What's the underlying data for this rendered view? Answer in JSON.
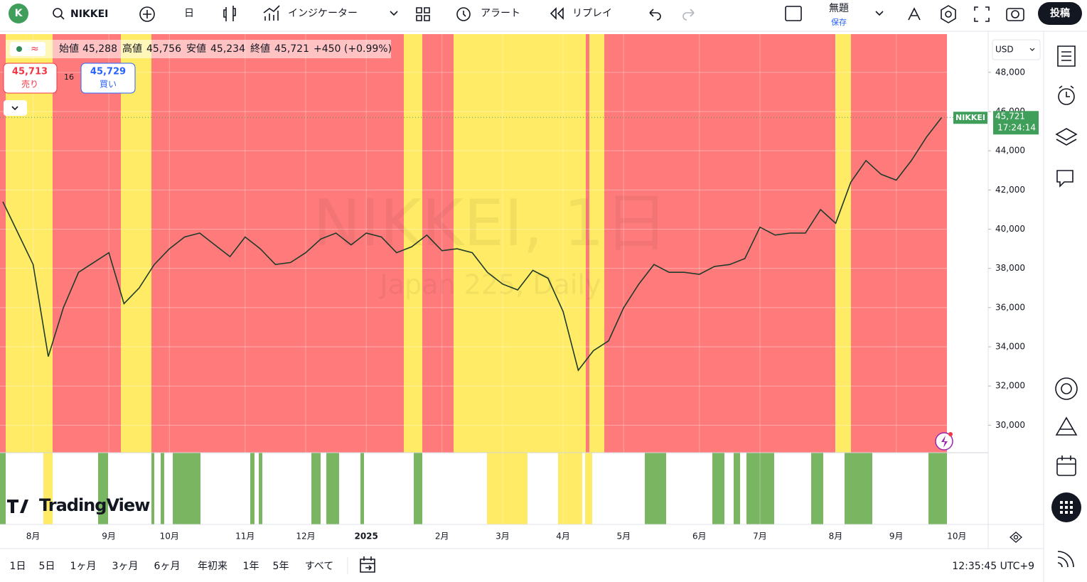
{
  "toolbar": {
    "avatar": "K",
    "symbol": "NIKKEI",
    "interval": "日",
    "indicators": "インジケーター",
    "alert": "アラート",
    "replay": "リプレイ",
    "layout_name": "無題",
    "save": "保存",
    "publish": "投稿"
  },
  "legend": {
    "open_label": "始値",
    "open": "45,288",
    "high_label": "高値",
    "high": "45,756",
    "low_label": "安値",
    "low": "45,234",
    "close_label": "終値",
    "close": "45,721",
    "change": "+450 (+0.99%)"
  },
  "trade": {
    "sell_price": "45,713",
    "sell": "売り",
    "spread": "16",
    "buy_price": "45,729",
    "buy": "買い"
  },
  "watermark": {
    "title": "NIKKEI, 1日",
    "subtitle": "Japan 225, Daily"
  },
  "currency": "USD",
  "last_price": {
    "symbol": "NIKKEI",
    "price": "45,721",
    "countdown": "17:24:14"
  },
  "logo": "TradingView",
  "ranges": [
    "1日",
    "5日",
    "1ヶ月",
    "3ヶ月",
    "6ヶ月",
    "年初来",
    "1年",
    "5年",
    "すべて"
  ],
  "clock": "12:35:45 UTC+9",
  "chart_data": {
    "type": "line",
    "color": "#1f3b2a",
    "grid": true,
    "categories": [
      null,
      null,
      "8月",
      null,
      null,
      null,
      null,
      "9月",
      null,
      null,
      null,
      "10月",
      null,
      null,
      null,
      null,
      "11月",
      null,
      null,
      null,
      "12月",
      null,
      null,
      null,
      "2025",
      null,
      null,
      null,
      null,
      "2月",
      null,
      null,
      null,
      "3月",
      null,
      null,
      null,
      "4月",
      null,
      null,
      null,
      "5月",
      null,
      null,
      null,
      null,
      "6月",
      null,
      null,
      null,
      "7月",
      null,
      null,
      null,
      null,
      "8月",
      null,
      null,
      null,
      "9月",
      null,
      null,
      null,
      "10月"
    ],
    "values": [
      41400,
      39800,
      38200,
      33500,
      36000,
      37800,
      38300,
      38800,
      36200,
      37000,
      38200,
      39000,
      39600,
      39800,
      39200,
      38600,
      39600,
      39000,
      38200,
      38300,
      38800,
      39500,
      39800,
      39200,
      39800,
      39600,
      38800,
      39100,
      39700,
      38900,
      39000,
      38800,
      37800,
      37200,
      36900,
      37900,
      37500,
      35800,
      32800,
      33800,
      34300,
      36000,
      37200,
      38200,
      37800,
      37800,
      37700,
      38100,
      38200,
      38500,
      40100,
      39700,
      39800,
      39800,
      41000,
      40300,
      42400,
      43500,
      42800,
      42500,
      43500,
      44700,
      45700,
      null
    ],
    "ylim": [
      28600,
      49950
    ],
    "yticks": [
      {
        "value": 30000,
        "label": "30,000"
      },
      {
        "value": 32000,
        "label": "32,000"
      },
      {
        "value": 34000,
        "label": "34,000"
      },
      {
        "value": 36000,
        "label": "36,000"
      },
      {
        "value": 38000,
        "label": "38,000"
      },
      {
        "value": 40000,
        "label": "40,000"
      },
      {
        "value": 42000,
        "label": "42,000"
      },
      {
        "value": 44000,
        "label": "44,000"
      },
      {
        "value": 46000,
        "label": "46,000"
      },
      {
        "value": 48000,
        "label": "48,000"
      }
    ]
  }
}
